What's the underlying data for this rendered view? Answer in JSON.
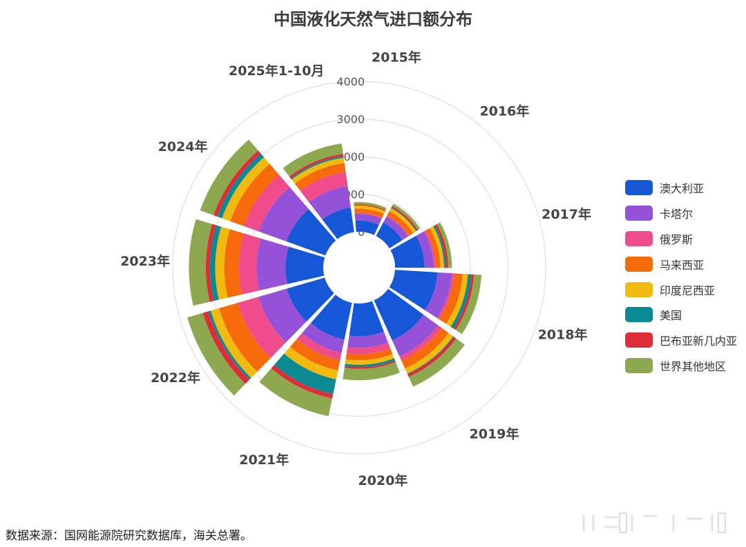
{
  "page": {
    "title": "中国液化天然气进口额分布",
    "source": "数据来源：国网能源院研究数据库，海关总署。"
  },
  "legend": [
    {
      "label": "澳大利亚",
      "color": "#1657d8"
    },
    {
      "label": "卡塔尔",
      "color": "#9452d8"
    },
    {
      "label": "俄罗斯",
      "color": "#ef4c8c"
    },
    {
      "label": "马来西亚",
      "color": "#f66a0a"
    },
    {
      "label": "印度尼西亚",
      "color": "#f2b90f"
    },
    {
      "label": "美国",
      "color": "#0a8a92"
    },
    {
      "label": "巴布亚新几内亚",
      "color": "#dd2d39"
    },
    {
      "label": "世界其他地区",
      "color": "#8ea84f"
    }
  ],
  "chart_data": {
    "type": "polar-stacked-bar",
    "title": "中国液化天然气进口额分布",
    "categories": [
      "2015年",
      "2016年",
      "2017年",
      "2018年",
      "2019年",
      "2020年",
      "2021年",
      "2022年",
      "2023年",
      "2024年",
      "2025年1-10月"
    ],
    "radial_axis": {
      "min": 0,
      "max": 4000,
      "ticks": [
        0,
        1000,
        2000,
        3000,
        4000
      ]
    },
    "series": [
      {
        "name": "澳大利亚",
        "color": "#1657d8",
        "values": [
          300,
          410,
          780,
          1130,
          1170,
          870,
          1000,
          1050,
          1000,
          1100,
          660
        ]
      },
      {
        "name": "卡塔尔",
        "color": "#9452d8",
        "values": [
          180,
          180,
          240,
          380,
          470,
          310,
          360,
          780,
          770,
          780,
          580
        ]
      },
      {
        "name": "俄罗斯",
        "color": "#ef4c8c",
        "values": [
          20,
          20,
          50,
          60,
          120,
          170,
          200,
          580,
          470,
          430,
          380
        ]
      },
      {
        "name": "马来西亚",
        "color": "#f66a0a",
        "values": [
          120,
          140,
          130,
          230,
          230,
          160,
          280,
          510,
          390,
          380,
          240
        ]
      },
      {
        "name": "印度尼西亚",
        "color": "#f2b90f",
        "values": [
          80,
          90,
          100,
          140,
          150,
          120,
          240,
          230,
          240,
          230,
          140
        ]
      },
      {
        "name": "美国",
        "color": "#0a8a92",
        "values": [
          0,
          20,
          50,
          90,
          20,
          60,
          400,
          70,
          140,
          130,
          40
        ]
      },
      {
        "name": "巴布亚新几内亚",
        "color": "#dd2d39",
        "values": [
          30,
          40,
          60,
          70,
          80,
          50,
          120,
          150,
          110,
          110,
          60
        ]
      },
      {
        "name": "世界其他地区",
        "color": "#8ea84f",
        "values": [
          60,
          70,
          100,
          200,
          280,
          300,
          480,
          430,
          450,
          380,
          280
        ]
      }
    ],
    "legend_position": "right",
    "grid": true
  }
}
